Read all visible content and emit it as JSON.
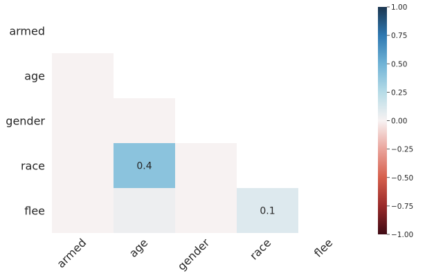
{
  "chart_data": {
    "type": "heatmap",
    "title": "",
    "xlabel": "",
    "ylabel": "",
    "rows": [
      "armed",
      "age",
      "gender",
      "race",
      "flee"
    ],
    "columns": [
      "armed",
      "age",
      "gender",
      "race",
      "flee"
    ],
    "mask": "upper-triangle-including-diagonal",
    "values": [
      [
        null,
        null,
        null,
        null,
        null
      ],
      [
        0.0,
        null,
        null,
        null,
        null
      ],
      [
        0.0,
        0.0,
        null,
        null,
        null
      ],
      [
        0.0,
        0.4,
        0.0,
        null,
        null
      ],
      [
        0.0,
        0.04,
        0.0,
        0.1,
        null
      ]
    ],
    "annotations": [
      {
        "row": "race",
        "column": "age",
        "text": "0.4"
      },
      {
        "row": "flee",
        "column": "race",
        "text": "0.1"
      }
    ],
    "colorbar": {
      "range": [
        -1.0,
        1.0
      ],
      "ticks": [
        "1.00",
        "0.75",
        "0.50",
        "0.25",
        "0.00",
        "−0.25",
        "−0.50",
        "−0.75",
        "−1.00"
      ],
      "tick_values": [
        1.0,
        0.75,
        0.5,
        0.25,
        0.0,
        -0.25,
        -0.5,
        -0.75,
        -1.0
      ],
      "colormap_stops": [
        {
          "v": -1.0,
          "color": "#3f0a14"
        },
        {
          "v": -0.75,
          "color": "#9a2a2a"
        },
        {
          "v": -0.5,
          "color": "#d65f4c"
        },
        {
          "v": -0.25,
          "color": "#eaa49c"
        },
        {
          "v": 0.0,
          "color": "#f7f2f2"
        },
        {
          "v": 0.25,
          "color": "#b6dce7"
        },
        {
          "v": 0.5,
          "color": "#6fb3d6"
        },
        {
          "v": 0.75,
          "color": "#2e78b1"
        },
        {
          "v": 1.0,
          "color": "#1b3650"
        }
      ]
    },
    "grid": false
  }
}
